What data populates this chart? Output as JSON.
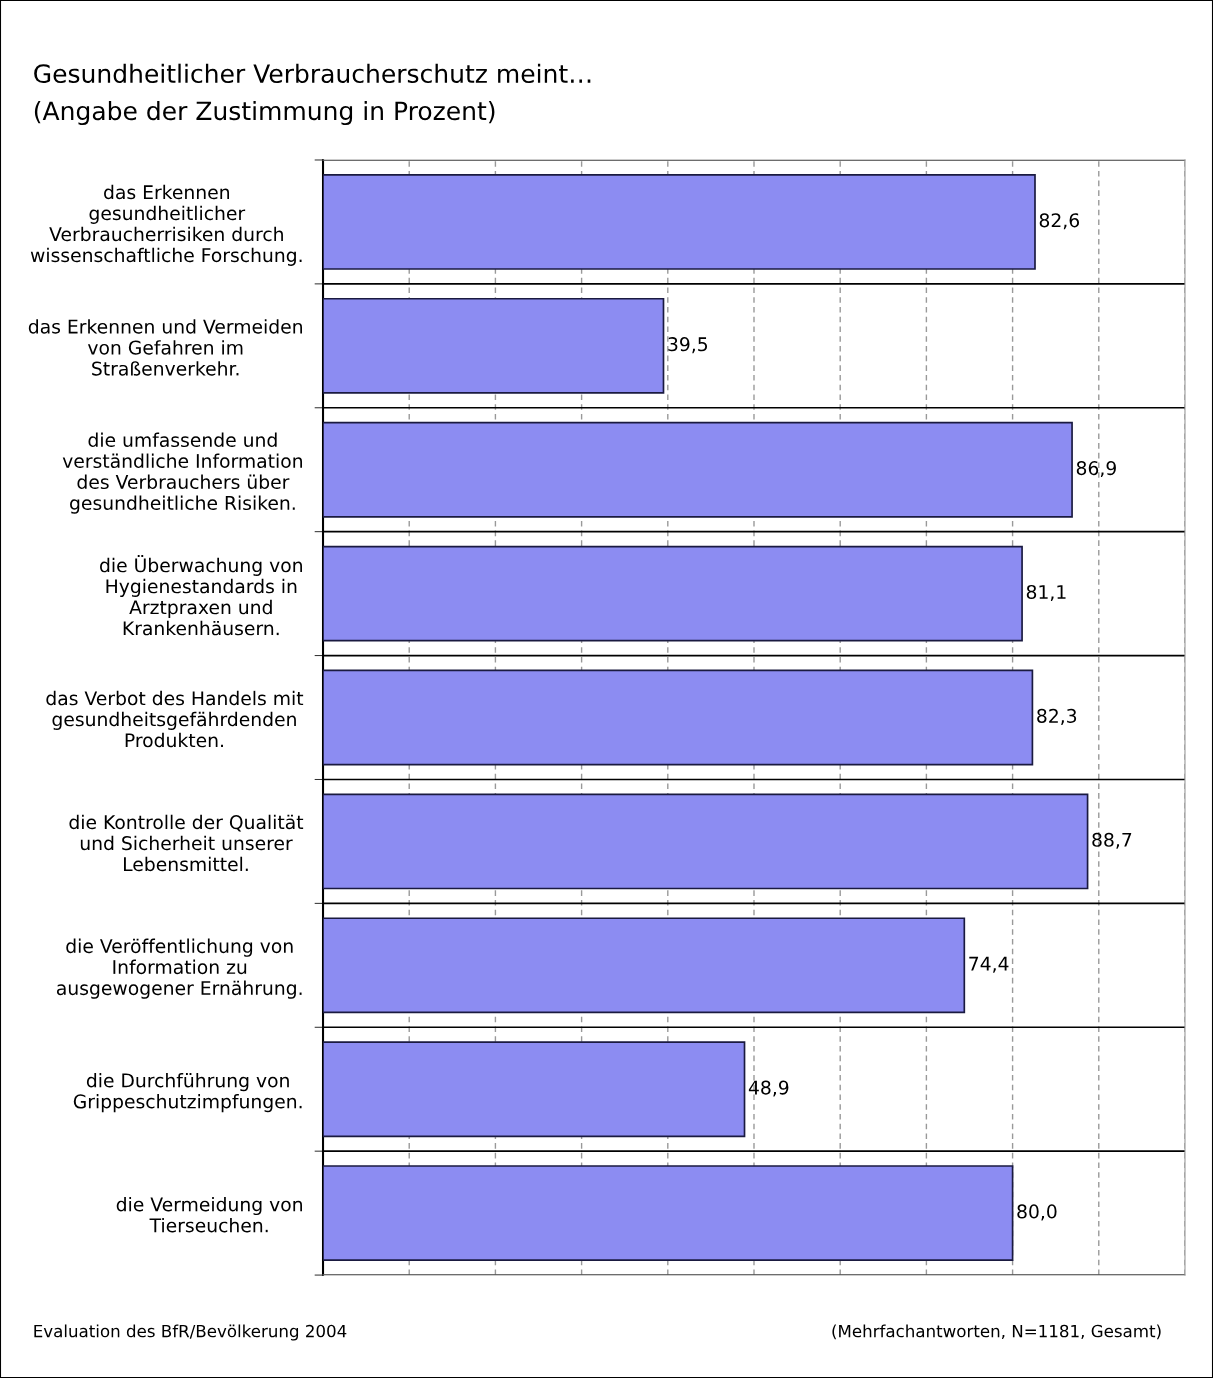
{
  "chart_data": {
    "type": "bar",
    "orientation": "horizontal",
    "title": "Gesundheitlicher Verbraucherschutz meint…",
    "subtitle": "(Angabe der Zustimmung in Prozent)",
    "categories": [
      "das Erkennen\ngesundheitlicher\nVerbraucherrisiken durch\nwissenschaftliche Forschung.",
      "das Erkennen und Vermeiden\nvon Gefahren im\nStraßenverkehr.",
      "die umfassende und\nverständliche Information\ndes Verbrauchers über\ngesundheitliche Risiken.",
      "die Überwachung von\nHygienestandards in\nArztpraxen und\nKrankenhäusern.",
      "das Verbot des Handels mit\ngesundheitsgefährdenden\nProdukten.",
      "die Kontrolle der Qualität\nund Sicherheit unserer\nLebensmittel.",
      "die Veröffentlichung von\nInformation zu\nausgewogener Ernährung.",
      "die Durchführung von\nGrippeschutzimpfungen.",
      "die Vermeidung von\nTierseuchen."
    ],
    "values": [
      82.6,
      39.5,
      86.9,
      81.1,
      82.3,
      88.7,
      74.4,
      48.9,
      80.0
    ],
    "value_labels": [
      "82,6",
      "39,5",
      "86,9",
      "81,1",
      "82,3",
      "88,7",
      "74,4",
      "48,9",
      "80,0"
    ],
    "color": "#8c8cf2",
    "xlim": [
      0,
      100
    ],
    "xticks": [
      {
        "value": 0,
        "label": null
      },
      {
        "value": 10,
        "label": null
      },
      {
        "value": 20,
        "label": null
      },
      {
        "value": 30,
        "label": null
      },
      {
        "value": 40,
        "label": null
      },
      {
        "value": 50,
        "label": null
      },
      {
        "value": 60,
        "label": null
      },
      {
        "value": 70,
        "label": null
      },
      {
        "value": 80,
        "label": null
      },
      {
        "value": 90,
        "label": null
      },
      {
        "value": 100,
        "label": null
      }
    ],
    "grid": true,
    "tick_labels": "y",
    "annotations": [
      "Evaluation des BfR/Bevölkerung 2004",
      "(Mehrfachantworten, N=1181, Gesamt)"
    ]
  }
}
